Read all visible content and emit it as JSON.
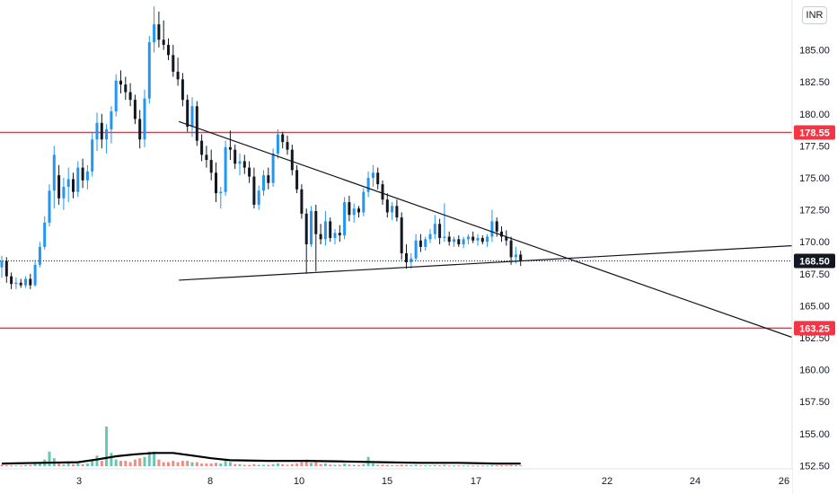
{
  "chart_data": {
    "type": "candlestick",
    "currency": "INR",
    "colors": {
      "up": "#2196f3",
      "down": "#131722",
      "vol_up": "#66c7b5",
      "vol_down": "#f28b82",
      "level": "#f23645",
      "ma": "#000000"
    },
    "y_ticks": [
      "185.00",
      "182.50",
      "180.00",
      "177.50",
      "175.00",
      "172.50",
      "170.00",
      "167.50",
      "165.00",
      "162.50",
      "160.00",
      "157.50",
      "155.00",
      "152.50"
    ],
    "x_ticks": [
      "3",
      "8",
      "10",
      "15",
      "17",
      "22",
      "24",
      "26"
    ],
    "price_levels": [
      {
        "label": "178.55",
        "value": 178.55
      },
      {
        "label": "163.25",
        "value": 163.25
      }
    ],
    "last_price": {
      "label": "168.50",
      "value": 168.5
    },
    "trendlines": [
      {
        "from": [
          9.3,
          179.4
        ],
        "to": [
          26.0,
          162.5
        ]
      },
      {
        "from": [
          9.3,
          167.0
        ],
        "to": [
          26.0,
          169.7
        ]
      }
    ],
    "candles": [
      [
        0.0,
        168.0,
        168.9,
        167.2,
        168.5
      ],
      [
        0.25,
        168.5,
        168.8,
        166.8,
        167.3
      ],
      [
        0.5,
        167.3,
        167.6,
        166.3,
        166.7
      ],
      [
        0.75,
        166.7,
        167.2,
        166.3,
        166.8
      ],
      [
        1.0,
        166.8,
        167.1,
        166.4,
        166.6
      ],
      [
        1.25,
        166.6,
        167.3,
        166.4,
        167.1
      ],
      [
        1.5,
        167.1,
        167.5,
        166.3,
        166.6
      ],
      [
        1.75,
        166.6,
        168.6,
        166.5,
        168.2
      ],
      [
        2.0,
        168.2,
        170.0,
        168.0,
        169.6
      ],
      [
        2.25,
        169.6,
        172.0,
        169.4,
        171.5
      ],
      [
        2.5,
        171.5,
        174.5,
        171.2,
        174.0
      ],
      [
        2.75,
        174.0,
        177.5,
        172.6,
        176.8
      ],
      [
        3.0,
        175.2,
        176.0,
        172.9,
        173.4
      ],
      [
        3.25,
        173.4,
        175.0,
        172.5,
        174.3
      ],
      [
        3.5,
        174.3,
        175.8,
        173.1,
        174.9
      ],
      [
        3.75,
        174.9,
        175.4,
        173.4,
        173.9
      ],
      [
        4.0,
        173.9,
        176.3,
        173.5,
        175.8
      ],
      [
        4.25,
        175.8,
        176.5,
        174.2,
        174.8
      ],
      [
        4.5,
        174.8,
        176.0,
        174.1,
        175.5
      ],
      [
        4.75,
        175.5,
        178.5,
        175.1,
        178.0
      ],
      [
        5.0,
        178.0,
        180.1,
        177.1,
        179.3
      ],
      [
        5.25,
        179.3,
        180.0,
        177.3,
        178.0
      ],
      [
        5.5,
        178.0,
        179.2,
        176.9,
        178.8
      ],
      [
        5.75,
        178.8,
        180.6,
        177.7,
        180.2
      ],
      [
        6.0,
        180.2,
        183.1,
        179.8,
        182.6
      ],
      [
        6.25,
        182.6,
        183.4,
        181.6,
        182.3
      ],
      [
        6.5,
        182.3,
        182.9,
        181.1,
        181.7
      ],
      [
        6.75,
        181.7,
        182.4,
        180.6,
        181.1
      ],
      [
        7.0,
        181.1,
        181.5,
        179.2,
        179.6
      ],
      [
        7.25,
        179.6,
        180.3,
        177.3,
        178.0
      ],
      [
        7.5,
        178.0,
        181.9,
        177.4,
        181.2
      ],
      [
        7.75,
        181.2,
        186.1,
        180.8,
        185.6
      ],
      [
        8.0,
        185.6,
        188.4,
        184.8,
        187.0
      ],
      [
        8.25,
        187.0,
        188.0,
        185.2,
        185.8
      ],
      [
        8.5,
        185.8,
        187.3,
        185.0,
        185.4
      ],
      [
        8.75,
        185.4,
        185.9,
        184.2,
        184.6
      ],
      [
        9.0,
        184.6,
        185.4,
        182.9,
        183.3
      ],
      [
        9.25,
        183.3,
        184.4,
        182.2,
        182.7
      ],
      [
        9.5,
        182.7,
        183.2,
        180.6,
        181.1
      ],
      [
        9.75,
        181.1,
        181.5,
        178.6,
        179.0
      ],
      [
        10.0,
        179.0,
        181.3,
        178.2,
        180.6
      ],
      [
        10.25,
        180.6,
        181.0,
        177.5,
        177.9
      ],
      [
        10.5,
        177.9,
        178.4,
        176.3,
        176.8
      ],
      [
        10.75,
        176.8,
        177.5,
        175.8,
        176.4
      ],
      [
        11.0,
        176.4,
        177.2,
        174.8,
        175.4
      ],
      [
        11.25,
        175.4,
        176.2,
        173.1,
        173.8
      ],
      [
        11.5,
        173.8,
        174.3,
        172.6,
        173.9
      ],
      [
        11.75,
        173.9,
        177.9,
        173.6,
        177.4
      ],
      [
        12.0,
        177.4,
        178.7,
        176.4,
        177.2
      ],
      [
        12.25,
        177.2,
        177.6,
        175.7,
        176.1
      ],
      [
        12.5,
        176.1,
        176.9,
        175.2,
        176.3
      ],
      [
        12.75,
        176.3,
        176.8,
        175.3,
        175.8
      ],
      [
        13.0,
        175.8,
        176.3,
        174.6,
        175.1
      ],
      [
        13.25,
        175.1,
        175.8,
        172.6,
        172.9
      ],
      [
        13.5,
        172.9,
        174.4,
        172.5,
        174.0
      ],
      [
        13.75,
        174.0,
        175.6,
        173.6,
        175.2
      ],
      [
        14.0,
        175.2,
        175.8,
        174.1,
        174.6
      ],
      [
        14.25,
        174.6,
        177.3,
        174.3,
        176.9
      ],
      [
        14.5,
        176.9,
        178.8,
        176.5,
        178.4
      ],
      [
        14.75,
        178.4,
        178.6,
        177.3,
        177.8
      ],
      [
        15.0,
        177.8,
        178.3,
        176.8,
        177.2
      ],
      [
        15.25,
        177.2,
        177.6,
        175.2,
        175.6
      ],
      [
        15.5,
        175.6,
        176.0,
        173.8,
        174.1
      ],
      [
        15.75,
        174.1,
        174.5,
        171.8,
        172.2
      ],
      [
        16.0,
        172.2,
        172.6,
        167.5,
        169.8
      ],
      [
        16.25,
        169.8,
        172.8,
        169.6,
        172.4
      ],
      [
        16.5,
        172.4,
        172.9,
        167.7,
        170.6
      ],
      [
        16.75,
        170.6,
        171.4,
        169.8,
        170.2
      ],
      [
        17.0,
        170.2,
        172.4,
        169.7,
        171.6
      ],
      [
        17.25,
        171.6,
        171.9,
        170.0,
        170.3
      ],
      [
        17.5,
        170.3,
        171.0,
        169.8,
        170.7
      ],
      [
        17.75,
        170.7,
        171.3,
        170.0,
        170.5
      ],
      [
        18.0,
        170.5,
        173.5,
        170.2,
        173.1
      ],
      [
        18.25,
        173.1,
        173.6,
        171.6,
        172.1
      ],
      [
        18.5,
        172.1,
        173.0,
        171.5,
        172.6
      ],
      [
        18.75,
        172.6,
        172.8,
        171.9,
        172.3
      ],
      [
        19.0,
        172.3,
        174.2,
        172.0,
        173.9
      ],
      [
        19.25,
        173.9,
        175.5,
        173.5,
        175.0
      ],
      [
        19.5,
        175.0,
        176.0,
        174.3,
        175.4
      ],
      [
        19.75,
        175.4,
        175.8,
        174.1,
        174.5
      ],
      [
        20.0,
        174.5,
        174.8,
        172.9,
        173.3
      ],
      [
        20.25,
        173.3,
        173.8,
        171.9,
        172.3
      ],
      [
        20.5,
        172.3,
        173.1,
        171.7,
        172.8
      ],
      [
        20.75,
        172.8,
        173.3,
        171.6,
        171.9
      ],
      [
        21.0,
        171.9,
        172.3,
        168.6,
        169.1
      ],
      [
        21.25,
        169.1,
        169.8,
        167.9,
        168.4
      ],
      [
        21.5,
        168.4,
        169.1,
        167.9,
        168.7
      ],
      [
        21.75,
        168.7,
        170.6,
        168.5,
        170.1
      ],
      [
        22.0,
        170.1,
        170.6,
        169.2,
        169.6
      ],
      [
        22.25,
        169.6,
        170.4,
        169.3,
        170.2
      ],
      [
        22.5,
        170.2,
        171.0,
        169.9,
        170.6
      ],
      [
        22.75,
        170.6,
        172.1,
        170.2,
        171.4
      ],
      [
        23.0,
        171.4,
        171.8,
        169.8,
        170.3
      ],
      [
        23.25,
        170.3,
        173.0,
        170.0,
        170.4
      ],
      [
        23.5,
        170.4,
        170.8,
        169.7,
        170.0
      ],
      [
        23.75,
        170.0,
        170.4,
        169.6,
        170.2
      ],
      [
        24.0,
        170.2,
        170.5,
        169.6,
        169.8
      ],
      [
        24.25,
        169.8,
        170.4,
        169.5,
        170.2
      ],
      [
        24.5,
        170.2,
        170.6,
        169.8,
        170.4
      ],
      [
        24.75,
        170.4,
        170.8,
        169.9,
        170.1
      ],
      [
        25.0,
        170.1,
        170.6,
        169.7,
        170.3
      ],
      [
        25.25,
        170.3,
        170.5,
        169.8,
        170.0
      ],
      [
        25.5,
        170.0,
        170.6,
        169.6,
        170.4
      ],
      [
        25.75,
        170.4,
        172.5,
        170.0,
        171.6
      ],
      [
        26.0,
        171.6,
        171.9,
        170.4,
        170.8
      ],
      [
        26.25,
        170.8,
        171.2,
        170.0,
        170.4
      ],
      [
        26.5,
        170.4,
        170.9,
        169.7,
        170.1
      ],
      [
        26.75,
        170.1,
        170.4,
        168.2,
        168.8
      ],
      [
        27.0,
        168.8,
        169.6,
        168.3,
        169.0
      ],
      [
        27.25,
        169.0,
        169.3,
        168.1,
        168.5
      ]
    ],
    "volume": [
      [
        0.0,
        0.01,
        0
      ],
      [
        0.25,
        0.008,
        0
      ],
      [
        0.5,
        0.006,
        0
      ],
      [
        0.75,
        0.006,
        1
      ],
      [
        1.0,
        0.005,
        0
      ],
      [
        1.25,
        0.008,
        1
      ],
      [
        1.5,
        0.009,
        0
      ],
      [
        1.75,
        0.02,
        1
      ],
      [
        2.0,
        0.03,
        1
      ],
      [
        2.25,
        0.05,
        1
      ],
      [
        2.5,
        0.11,
        1
      ],
      [
        2.75,
        0.06,
        1
      ],
      [
        3.0,
        0.02,
        0
      ],
      [
        3.25,
        0.015,
        1
      ],
      [
        3.5,
        0.02,
        1
      ],
      [
        3.75,
        0.015,
        0
      ],
      [
        4.0,
        0.02,
        1
      ],
      [
        4.25,
        0.015,
        0
      ],
      [
        4.5,
        0.02,
        1
      ],
      [
        4.75,
        0.04,
        1
      ],
      [
        5.0,
        0.08,
        1
      ],
      [
        5.25,
        0.04,
        0
      ],
      [
        5.5,
        0.3,
        1
      ],
      [
        5.75,
        0.1,
        1
      ],
      [
        6.0,
        0.05,
        1
      ],
      [
        6.25,
        0.04,
        0
      ],
      [
        6.5,
        0.04,
        0
      ],
      [
        6.75,
        0.03,
        0
      ],
      [
        7.0,
        0.05,
        0
      ],
      [
        7.25,
        0.06,
        0
      ],
      [
        7.5,
        0.07,
        1
      ],
      [
        7.75,
        0.11,
        1
      ],
      [
        8.0,
        0.11,
        1
      ],
      [
        8.25,
        0.05,
        0
      ],
      [
        8.5,
        0.03,
        0
      ],
      [
        8.75,
        0.03,
        0
      ],
      [
        9.0,
        0.04,
        0
      ],
      [
        9.25,
        0.03,
        0
      ],
      [
        9.5,
        0.04,
        0
      ],
      [
        9.75,
        0.04,
        0
      ],
      [
        10.0,
        0.03,
        1
      ],
      [
        10.25,
        0.03,
        0
      ],
      [
        10.5,
        0.02,
        0
      ],
      [
        10.75,
        0.02,
        0
      ],
      [
        11.0,
        0.02,
        0
      ],
      [
        11.25,
        0.025,
        0
      ],
      [
        11.5,
        0.02,
        1
      ],
      [
        11.75,
        0.04,
        1
      ],
      [
        12.0,
        0.03,
        1
      ],
      [
        12.25,
        0.015,
        0
      ],
      [
        12.5,
        0.015,
        1
      ],
      [
        12.75,
        0.01,
        0
      ],
      [
        13.0,
        0.01,
        0
      ],
      [
        13.25,
        0.015,
        0
      ],
      [
        13.5,
        0.01,
        1
      ],
      [
        13.75,
        0.01,
        1
      ],
      [
        14.0,
        0.01,
        0
      ],
      [
        14.25,
        0.015,
        1
      ],
      [
        14.5,
        0.02,
        1
      ],
      [
        14.75,
        0.015,
        0
      ],
      [
        15.0,
        0.01,
        0
      ],
      [
        15.25,
        0.015,
        0
      ],
      [
        15.5,
        0.02,
        0
      ],
      [
        15.75,
        0.03,
        0
      ],
      [
        16.0,
        0.05,
        0
      ],
      [
        16.25,
        0.025,
        1
      ],
      [
        16.5,
        0.03,
        0
      ],
      [
        16.75,
        0.015,
        0
      ],
      [
        17.0,
        0.02,
        1
      ],
      [
        17.25,
        0.012,
        0
      ],
      [
        17.5,
        0.01,
        1
      ],
      [
        17.75,
        0.01,
        0
      ],
      [
        18.0,
        0.02,
        1
      ],
      [
        18.25,
        0.012,
        0
      ],
      [
        18.5,
        0.01,
        1
      ],
      [
        18.75,
        0.008,
        0
      ],
      [
        19.0,
        0.015,
        1
      ],
      [
        19.25,
        0.07,
        1
      ],
      [
        19.5,
        0.02,
        1
      ],
      [
        19.75,
        0.01,
        0
      ],
      [
        20.0,
        0.012,
        0
      ],
      [
        20.25,
        0.01,
        0
      ],
      [
        20.5,
        0.008,
        1
      ],
      [
        20.75,
        0.008,
        0
      ],
      [
        21.0,
        0.012,
        0
      ],
      [
        21.25,
        0.01,
        0
      ],
      [
        21.5,
        0.008,
        1
      ],
      [
        21.75,
        0.01,
        1
      ],
      [
        22.0,
        0.006,
        0
      ],
      [
        22.25,
        0.006,
        1
      ],
      [
        22.5,
        0.006,
        1
      ],
      [
        22.75,
        0.008,
        1
      ],
      [
        23.0,
        0.006,
        0
      ],
      [
        23.25,
        0.01,
        1
      ],
      [
        23.5,
        0.005,
        0
      ],
      [
        23.75,
        0.005,
        1
      ],
      [
        24.0,
        0.005,
        0
      ],
      [
        24.25,
        0.005,
        1
      ],
      [
        24.5,
        0.005,
        1
      ],
      [
        24.75,
        0.005,
        0
      ],
      [
        25.0,
        0.005,
        1
      ],
      [
        25.25,
        0.005,
        0
      ],
      [
        25.5,
        0.005,
        1
      ],
      [
        25.75,
        0.008,
        1
      ],
      [
        26.0,
        0.006,
        0
      ],
      [
        26.25,
        0.006,
        0
      ],
      [
        26.5,
        0.006,
        0
      ],
      [
        26.75,
        0.008,
        0
      ],
      [
        27.0,
        0.006,
        1
      ],
      [
        27.25,
        0.006,
        0
      ]
    ],
    "volume_ma": [
      [
        0.0,
        0.02
      ],
      [
        2.0,
        0.025
      ],
      [
        4.0,
        0.03
      ],
      [
        5.0,
        0.05
      ],
      [
        6.0,
        0.075
      ],
      [
        7.0,
        0.09
      ],
      [
        8.0,
        0.1
      ],
      [
        9.0,
        0.1
      ],
      [
        10.0,
        0.08
      ],
      [
        11.0,
        0.06
      ],
      [
        12.0,
        0.045
      ],
      [
        14.0,
        0.04
      ],
      [
        16.0,
        0.04
      ],
      [
        18.0,
        0.035
      ],
      [
        20.0,
        0.03
      ],
      [
        22.0,
        0.025
      ],
      [
        24.0,
        0.025
      ],
      [
        26.0,
        0.02
      ],
      [
        27.25,
        0.02
      ]
    ]
  }
}
